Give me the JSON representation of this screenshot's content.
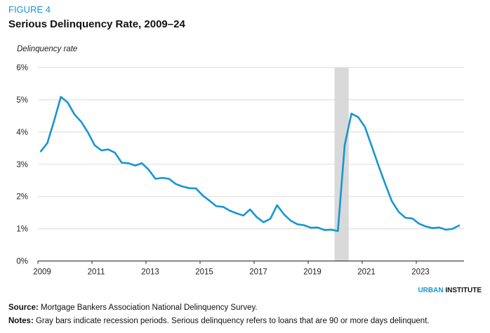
{
  "figure_label": "FIGURE 4",
  "title": "Serious Delinquency Rate, 2009–24",
  "brand": {
    "part1": "URBAN",
    "part2": "INSTITUTE"
  },
  "source": {
    "label": "Source:",
    "text": "Mortgage Bankers Association National Delinquency Survey."
  },
  "notes": {
    "label": "Notes:",
    "text": "Gray bars indicate recession periods. Serious delinquency refers to loans that are 90 or more days delinquent."
  },
  "colors": {
    "line": "#1696d2",
    "recession": "#d9d9d9",
    "grid": "#e0e0e0",
    "accent": "#1696d2"
  },
  "chart_data": {
    "type": "line",
    "title": "Serious Delinquency Rate, 2009–24",
    "ylabel": "Delinquency rate",
    "xlabel": "",
    "ylim": [
      0,
      6
    ],
    "xlim": [
      "2009",
      "2024 Q3"
    ],
    "grid": true,
    "y_ticks": [
      "0%",
      "1%",
      "2%",
      "3%",
      "4%",
      "5%",
      "6%"
    ],
    "x_ticks": [
      "2009",
      "2011",
      "2013",
      "2015",
      "2017",
      "2019",
      "2021",
      "2023"
    ],
    "frequency": "quarterly",
    "start": "2009 Q1",
    "recessions": [
      {
        "start": "2020 Q1",
        "end": "2020 Q2"
      }
    ],
    "series": [
      {
        "values": [
          3.39,
          3.66,
          4.35,
          5.09,
          4.92,
          4.55,
          4.32,
          3.99,
          3.59,
          3.43,
          3.46,
          3.36,
          3.05,
          3.03,
          2.96,
          3.03,
          2.83,
          2.55,
          2.58,
          2.55,
          2.39,
          2.31,
          2.26,
          2.25,
          2.03,
          1.87,
          1.7,
          1.68,
          1.56,
          1.48,
          1.41,
          1.6,
          1.36,
          1.2,
          1.31,
          1.73,
          1.45,
          1.25,
          1.14,
          1.11,
          1.03,
          1.04,
          0.96,
          0.97,
          0.93,
          3.59,
          4.57,
          4.46,
          4.16,
          3.56,
          2.96,
          2.39,
          1.85,
          1.52,
          1.34,
          1.32,
          1.16,
          1.07,
          1.02,
          1.04,
          0.97,
          1.0,
          1.11
        ]
      }
    ]
  }
}
